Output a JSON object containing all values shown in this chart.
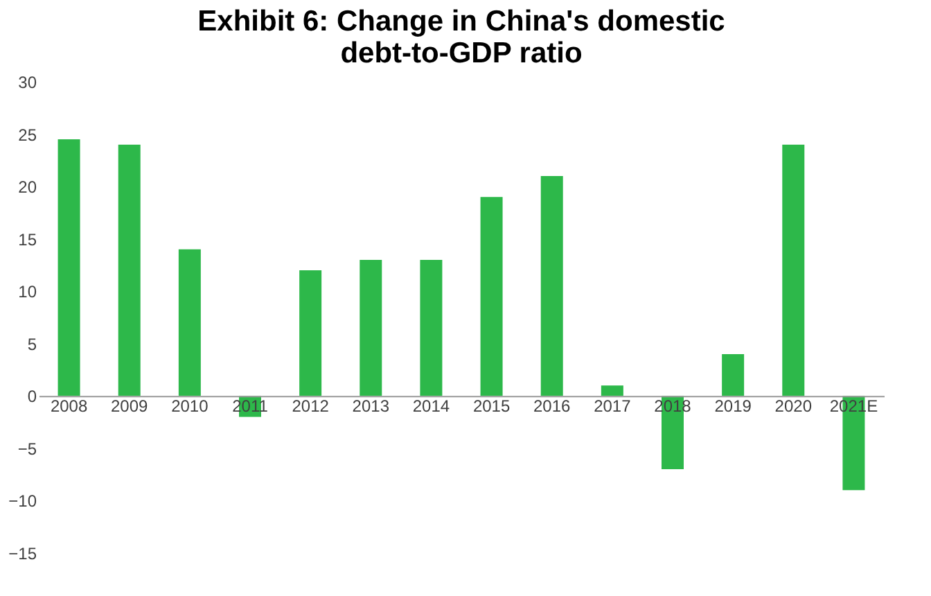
{
  "chart_data": {
    "type": "bar",
    "title": [
      "Exhibit 6: Change in China's domestic",
      "debt-to-GDP ratio"
    ],
    "categories": [
      "2008",
      "2009",
      "2010",
      "2011",
      "2012",
      "2013",
      "2014",
      "2015",
      "2016",
      "2017",
      "2018",
      "2019",
      "2020",
      "2021E"
    ],
    "series": [
      {
        "color": "#2db84a",
        "values": [
          24.5,
          24,
          14,
          -2,
          12,
          13,
          13,
          19,
          21,
          1,
          -7,
          4,
          24,
          -9
        ]
      }
    ],
    "ylim": [
      -15,
      30
    ],
    "yticks": [
      -15,
      -10,
      -5,
      0,
      5,
      10,
      15,
      20,
      25,
      30
    ],
    "grid": false
  }
}
